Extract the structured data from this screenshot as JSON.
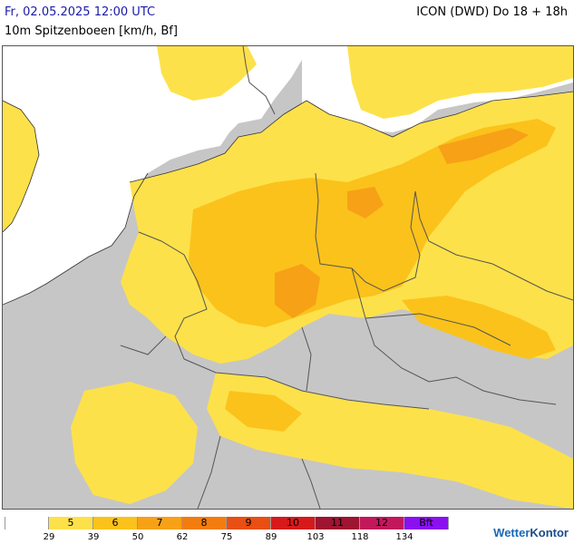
{
  "header": {
    "valid_time": "Fr, 02.05.2025 12:00 UTC",
    "model_run": "ICON (DWD) Do 18 + 18h",
    "parameter": "10m Spitzenboeen [km/h, Bf]"
  },
  "map": {
    "description_colors": {
      "land_below_threshold": "#c6c6c6",
      "sea_calm": "#ffffff",
      "bf5": "#fde14a",
      "bf6": "#fbc21b",
      "bf7": "#f7a116",
      "borders": "#555555"
    }
  },
  "legend": {
    "classes": [
      {
        "label": "",
        "color": "#ffffff"
      },
      {
        "label": "5",
        "color": "#fde14a"
      },
      {
        "label": "6",
        "color": "#fbc21b"
      },
      {
        "label": "7",
        "color": "#f7a116"
      },
      {
        "label": "8",
        "color": "#f37c0e"
      },
      {
        "label": "9",
        "color": "#e94e12"
      },
      {
        "label": "10",
        "color": "#d7191c"
      },
      {
        "label": "11",
        "color": "#9e1431"
      },
      {
        "label": "12",
        "color": "#c2185b"
      },
      {
        "label": "Bft",
        "color": "#8b10f0"
      }
    ],
    "ticks": [
      "29",
      "39",
      "50",
      "62",
      "75",
      "89",
      "103",
      "118",
      "134"
    ]
  },
  "brand": {
    "name_part1": "Wetter",
    "name_part2": "Kontor"
  }
}
